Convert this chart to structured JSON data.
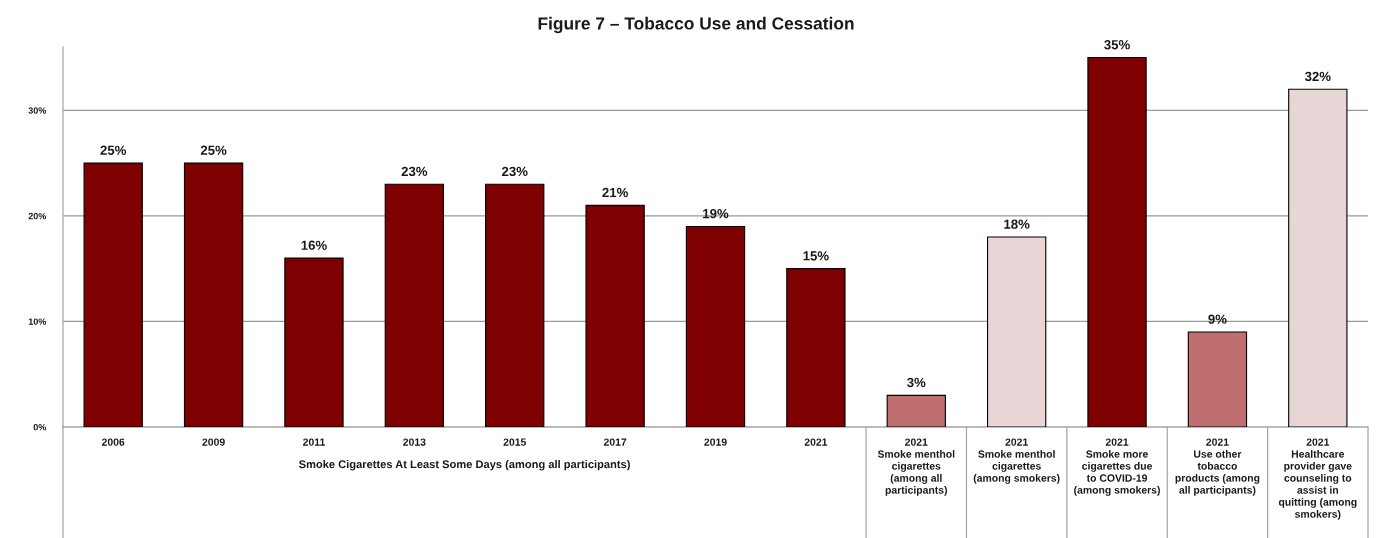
{
  "chart_data": {
    "type": "bar",
    "title": "Figure 7 – Tobacco Use and Cessation",
    "categories": [
      "2006",
      "2009",
      "2011",
      "2013",
      "2015",
      "2017",
      "2019",
      "2021",
      "2021\nSmoke menthol\ncigarettes\n(among all\nparticipants)",
      "2021\nSmoke menthol\ncigarettes\n(among smokers)",
      "2021\nSmoke more\ncigarettes due\nto COVID-19\n(among smokers)",
      "2021\nUse other\ntobacco\nproducts (among\nall participants)",
      "2021\nHealthcare\nprovider gave\ncounseling to\nassist in\nquitting (among\nsmokers)"
    ],
    "values": [
      25,
      25,
      16,
      23,
      23,
      21,
      19,
      15,
      3,
      18,
      35,
      9,
      32
    ],
    "colors": [
      "#7f0000",
      "#7f0000",
      "#7f0000",
      "#7f0000",
      "#7f0000",
      "#7f0000",
      "#7f0000",
      "#7f0000",
      "#bf6f6f",
      "#e8d5d5",
      "#7f0000",
      "#bf6f6f",
      "#e8d5d5"
    ],
    "value_labels": [
      "25%",
      "25%",
      "16%",
      "23%",
      "23%",
      "21%",
      "19%",
      "15%",
      "3%",
      "18%",
      "35%",
      "9%",
      "32%"
    ],
    "ylim": [
      0,
      36
    ],
    "yticks": [
      {
        "value": 0,
        "label": "0%"
      },
      {
        "value": 10,
        "label": "10%"
      },
      {
        "value": 20,
        "label": "20%"
      },
      {
        "value": 30,
        "label": "30%"
      }
    ],
    "grid": "y",
    "annotations": [
      "Smoke Cigarettes At Least Some Days (among all participants)"
    ]
  }
}
